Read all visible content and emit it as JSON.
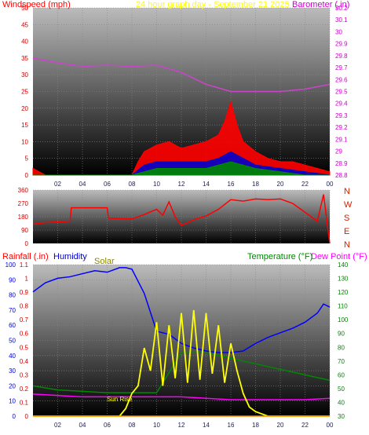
{
  "chart_data": [
    {
      "type": "line",
      "title": "24 hour graph day - September 21 2025",
      "left_axis_label": "Windspeed (mph)",
      "right_axis_label": "Barometer (.in)",
      "left_ticks": [
        "0",
        "5",
        "10",
        "15",
        "20",
        "25",
        "30",
        "35",
        "40",
        "45",
        "50"
      ],
      "right_ticks": [
        "28.8",
        "28.9",
        "29",
        "29.1",
        "29.2",
        "29.3",
        "29.4",
        "29.5",
        "29.6",
        "29.7",
        "29.8",
        "29.9",
        "30",
        "30.1",
        "30.2"
      ],
      "x_ticks": [
        "02",
        "04",
        "06",
        "08",
        "10",
        "12",
        "14",
        "16",
        "18",
        "20",
        "22",
        "00"
      ],
      "xlim": [
        0,
        24
      ],
      "ylim_left": [
        0,
        50
      ],
      "ylim_right": [
        28.8,
        30.2
      ],
      "series": [
        {
          "name": "Barometer",
          "color": "#cc44cc",
          "axis": "right",
          "x": [
            0,
            2,
            4,
            6,
            8,
            10,
            12,
            14,
            16,
            18,
            20,
            22,
            24
          ],
          "y": [
            29.78,
            29.74,
            29.71,
            29.72,
            29.71,
            29.72,
            29.66,
            29.56,
            29.5,
            29.5,
            29.5,
            29.52,
            29.56
          ]
        },
        {
          "name": "Wind gust",
          "color": "#ff0000",
          "axis": "left",
          "x": [
            0,
            0.5,
            1,
            2,
            4,
            6,
            8,
            8.5,
            9,
            10,
            11,
            12,
            13,
            14,
            15,
            15.5,
            16,
            16.5,
            17,
            18,
            19,
            20,
            21,
            22,
            23,
            24
          ],
          "y": [
            2,
            1,
            0,
            0,
            0,
            0,
            0,
            4,
            7,
            9,
            10,
            8,
            9,
            10,
            12,
            16,
            22,
            15,
            10,
            7,
            5,
            4,
            4,
            3,
            2,
            1
          ]
        },
        {
          "name": "Wind average",
          "color": "#0000cc",
          "axis": "left",
          "x": [
            0,
            2,
            4,
            6,
            8,
            9,
            10,
            12,
            14,
            15,
            16,
            17,
            18,
            20,
            22,
            24
          ],
          "y": [
            0,
            0,
            0,
            0,
            0,
            3,
            4,
            4,
            4,
            5,
            7,
            5,
            3,
            2,
            1,
            0
          ]
        },
        {
          "name": "Wind speed",
          "color": "#008800",
          "axis": "left",
          "x": [
            0,
            2,
            4,
            6,
            8,
            9,
            10,
            12,
            14,
            15,
            16,
            17,
            18,
            20,
            22,
            24
          ],
          "y": [
            0,
            0,
            0,
            0,
            0,
            1,
            2,
            2,
            2,
            3,
            4,
            3,
            2,
            1,
            0,
            0
          ]
        }
      ]
    },
    {
      "type": "line",
      "title": "",
      "left_ticks": [
        "0",
        "90",
        "180",
        "270",
        "360"
      ],
      "right_ticks": [
        "N",
        "E",
        "S",
        "W",
        "N"
      ],
      "x_ticks": [
        "02",
        "04",
        "06",
        "08",
        "10",
        "12",
        "14",
        "16",
        "18",
        "20",
        "22",
        "00"
      ],
      "xlim": [
        0,
        24
      ],
      "ylim": [
        0,
        360
      ],
      "series": [
        {
          "name": "Wind direction",
          "color": "#ff0000",
          "x": [
            0,
            1,
            2,
            3,
            3.1,
            6,
            6.1,
            8,
            9,
            10,
            10.5,
            11,
            11.5,
            12,
            13,
            14,
            15,
            16,
            17,
            18,
            19,
            20,
            21,
            22,
            23,
            23.5,
            24
          ],
          "y": [
            130,
            140,
            145,
            150,
            240,
            240,
            170,
            165,
            195,
            230,
            190,
            280,
            180,
            120,
            160,
            185,
            230,
            295,
            285,
            300,
            295,
            300,
            270,
            210,
            150,
            330,
            0
          ]
        }
      ]
    },
    {
      "type": "line",
      "left_axis_label": "Rainfall (.in)",
      "left_axis_label_2": "Humidity",
      "solar_label": "Solar",
      "right_axis_label": "Temperature (°F)",
      "right_axis_label_2": "Dew Point (°F)",
      "annotation": "Sun Rise",
      "humidity_ticks": [
        "0",
        "10",
        "20",
        "30",
        "40",
        "50",
        "60",
        "70",
        "80",
        "90",
        "100"
      ],
      "rain_ticks": [
        "0",
        "0.1",
        "0.2",
        "0.3",
        "0.4",
        "0.5",
        "0.6",
        "0.7",
        "0.8",
        "0.9",
        "1",
        "1.1"
      ],
      "temp_ticks": [
        "30",
        "40",
        "50",
        "60",
        "70",
        "80",
        "90",
        "100",
        "110",
        "120",
        "130",
        "140"
      ],
      "x_ticks": [
        "02",
        "04",
        "06",
        "08",
        "10",
        "12",
        "14",
        "16",
        "18",
        "20",
        "22",
        "00"
      ],
      "xlim": [
        0,
        24
      ],
      "ylim_humidity": [
        0,
        100
      ],
      "ylim_rain": [
        0,
        1.1
      ],
      "ylim_temp": [
        30,
        140
      ],
      "series": [
        {
          "name": "Humidity",
          "color": "#0000ff",
          "axis": "humidity",
          "x": [
            0,
            1,
            2,
            3,
            4,
            5,
            6,
            7,
            7.5,
            8,
            9,
            10,
            11,
            12,
            13,
            14,
            15,
            16,
            17,
            18,
            19,
            20,
            21,
            22,
            23,
            23.5,
            24
          ],
          "y": [
            82,
            88,
            91,
            92,
            94,
            96,
            95,
            98,
            98,
            97,
            81,
            56,
            54,
            48,
            45,
            43,
            42,
            42,
            43,
            48,
            52,
            55,
            58,
            62,
            68,
            74,
            72
          ]
        },
        {
          "name": "Temperature",
          "color": "#008800",
          "axis": "temp",
          "x": [
            0,
            2,
            4,
            6,
            8,
            10,
            12,
            14,
            16,
            18,
            20,
            22,
            24
          ],
          "y": [
            52,
            49,
            48,
            47,
            47,
            47,
            76,
            76,
            72,
            68,
            64,
            60,
            56
          ]
        },
        {
          "name": "Dew Point",
          "color": "#ff00ff",
          "axis": "temp",
          "x": [
            0,
            2,
            4,
            6,
            8,
            10,
            12,
            14,
            16,
            18,
            20,
            22,
            24
          ],
          "y": [
            46,
            45,
            44,
            44,
            44,
            44,
            44,
            43,
            42,
            42,
            42,
            42,
            43
          ]
        },
        {
          "name": "Solar",
          "color": "#ffff00",
          "axis": "humidity",
          "x": [
            0,
            7,
            7.5,
            8,
            8.5,
            9,
            9.5,
            10,
            10.5,
            11,
            11.5,
            12,
            12.5,
            13,
            13.5,
            14,
            14.5,
            15,
            15.5,
            16,
            16.5,
            17,
            17.5,
            18,
            19,
            24
          ],
          "y": [
            0,
            0,
            5,
            15,
            20,
            45,
            30,
            62,
            20,
            60,
            25,
            68,
            22,
            70,
            24,
            68,
            28,
            60,
            22,
            48,
            30,
            15,
            6,
            3,
            0,
            0
          ]
        },
        {
          "name": "Rainfall",
          "color": "#ff8800",
          "axis": "rain",
          "x": [
            0,
            24
          ],
          "y": [
            0,
            0
          ]
        }
      ]
    }
  ],
  "colors": {
    "windspeed_label": "#ff0000",
    "title": "#ffff00",
    "barometer_label": "#cc00cc",
    "rain_label": "#ff0000",
    "humidity_label": "#0000cc",
    "solar_label": "#888800",
    "temp_label": "#008800",
    "dew_label": "#ff00ff",
    "compass_label": "#cc2200"
  }
}
